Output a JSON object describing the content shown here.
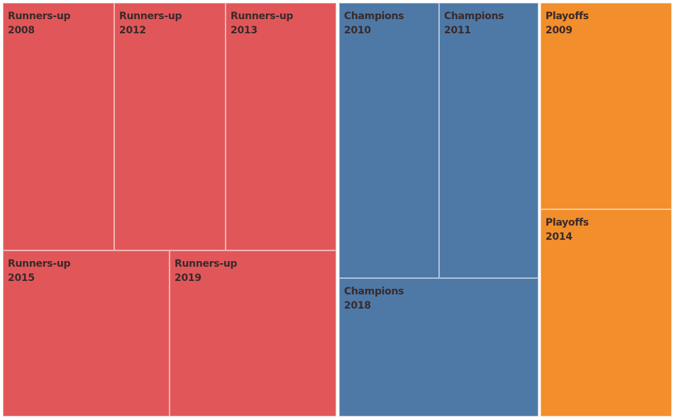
{
  "chart_data": {
    "type": "treemap",
    "title": "",
    "groups": [
      {
        "name": "Runners-up",
        "color": "#E15759",
        "items": [
          {
            "category": "Runners-up",
            "year": "2008",
            "value": 1
          },
          {
            "category": "Runners-up",
            "year": "2012",
            "value": 1
          },
          {
            "category": "Runners-up",
            "year": "2013",
            "value": 1
          },
          {
            "category": "Runners-up",
            "year": "2015",
            "value": 1
          },
          {
            "category": "Runners-up",
            "year": "2019",
            "value": 1
          }
        ]
      },
      {
        "name": "Champions",
        "color": "#4E79A7",
        "items": [
          {
            "category": "Champions",
            "year": "2010",
            "value": 1
          },
          {
            "category": "Champions",
            "year": "2011",
            "value": 1
          },
          {
            "category": "Champions",
            "year": "2018",
            "value": 1
          }
        ]
      },
      {
        "name": "Playoffs",
        "color": "#F28E2B",
        "items": [
          {
            "category": "Playoffs",
            "year": "2009",
            "value": 1
          },
          {
            "category": "Playoffs",
            "year": "2014",
            "value": 1
          }
        ]
      }
    ]
  }
}
